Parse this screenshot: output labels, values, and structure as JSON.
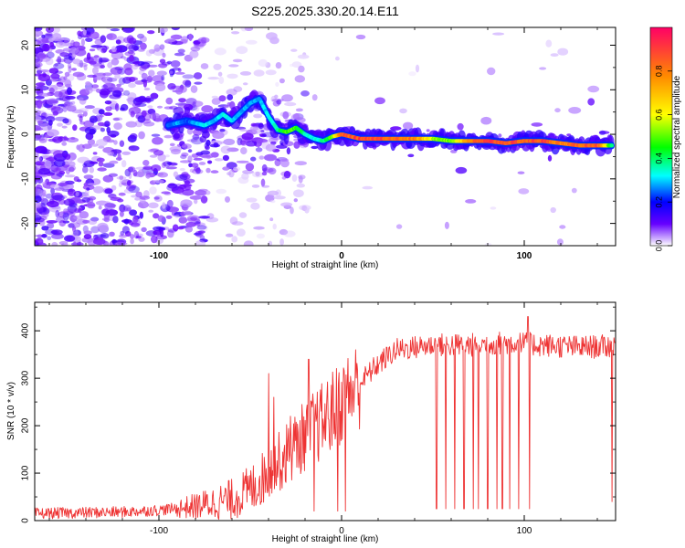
{
  "title": "S225.2025.330.20.14.E11",
  "chart_data": [
    {
      "type": "heatmap",
      "xlabel": "Height of straight line (km)",
      "ylabel": "Frequency (Hz)",
      "xlim": [
        -168,
        150
      ],
      "ylim": [
        -25,
        24
      ],
      "xticks": [
        -100,
        0,
        100
      ],
      "yticks": [
        -20,
        -10,
        0,
        10,
        20
      ],
      "colorbar": {
        "label": "Normalized spectral amplitude",
        "range": [
          0,
          1
        ],
        "ticks": [
          "0.0",
          "0.2",
          "0.4",
          "0.6",
          "0.8"
        ],
        "tick_values": [
          0,
          0.2,
          0.4,
          0.6,
          0.8
        ]
      },
      "ridge": {
        "x": [
          -95,
          -90,
          -85,
          -80,
          -75,
          -70,
          -65,
          -60,
          -55,
          -50,
          -45,
          -40,
          -35,
          -30,
          -25,
          -20,
          -15,
          -10,
          -5,
          0,
          10,
          20,
          30,
          40,
          50,
          60,
          70,
          80,
          90,
          100,
          110,
          120,
          130,
          140,
          148
        ],
        "y": [
          2,
          2.5,
          3,
          2.5,
          2,
          3,
          4.5,
          3,
          5,
          7,
          8,
          4,
          1,
          0.5,
          1.5,
          0,
          -1,
          -1.5,
          -0.5,
          0,
          -1,
          -1,
          -1,
          -1,
          -1,
          -1.5,
          -1.5,
          -1.5,
          -2,
          -1.5,
          -1.5,
          -2,
          -2.5,
          -2.5,
          -2.5
        ],
        "amplitude": [
          0.25,
          0.3,
          0.25,
          0.3,
          0.35,
          0.3,
          0.35,
          0.35,
          0.3,
          0.3,
          0.3,
          0.35,
          0.4,
          0.55,
          0.5,
          0.4,
          0.35,
          0.4,
          0.55,
          0.9,
          0.95,
          0.95,
          0.9,
          0.85,
          0.6,
          0.55,
          0.85,
          0.95,
          0.95,
          0.9,
          0.95,
          0.85,
          0.9,
          0.95,
          0.4
        ]
      }
    },
    {
      "type": "line",
      "xlabel": "Height of straight line (km)",
      "ylabel": "SNR (10 * v/v)",
      "xlim": [
        -168,
        150
      ],
      "ylim": [
        0,
        460
      ],
      "xticks": [
        -100,
        0,
        100
      ],
      "yticks": [
        0,
        100,
        200,
        300,
        400
      ],
      "color": "#ee3333",
      "trend": {
        "x": [
          -168,
          -120,
          -100,
          -80,
          -60,
          -50,
          -40,
          -30,
          -20,
          -10,
          0,
          10,
          20,
          30,
          50,
          70,
          90,
          110,
          130,
          150
        ],
        "y": [
          15,
          18,
          22,
          30,
          45,
          65,
          100,
          140,
          180,
          210,
          250,
          290,
          330,
          360,
          370,
          370,
          375,
          370,
          365,
          368
        ]
      },
      "spikes_up": [
        [
          -40,
          310
        ],
        [
          -37,
          260
        ],
        [
          -28,
          220
        ],
        [
          -18,
          340
        ],
        [
          103,
          460
        ],
        [
          102,
          430
        ]
      ],
      "dips": [
        [
          -15,
          20
        ],
        [
          -2,
          20
        ],
        [
          2,
          20
        ],
        [
          52,
          25
        ],
        [
          57,
          25
        ],
        [
          62,
          25
        ],
        [
          67,
          25
        ],
        [
          72,
          25
        ],
        [
          75,
          25
        ],
        [
          80,
          25
        ],
        [
          85,
          25
        ],
        [
          88,
          25
        ],
        [
          92,
          25
        ],
        [
          97,
          25
        ],
        [
          103,
          25
        ],
        [
          148,
          40
        ]
      ]
    }
  ]
}
